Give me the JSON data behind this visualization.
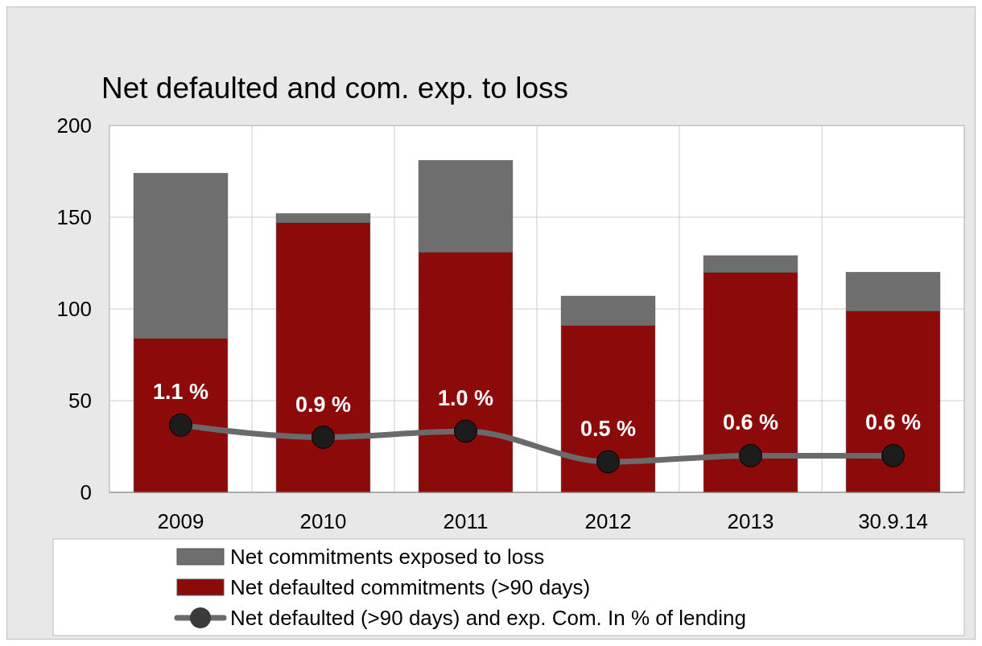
{
  "chart_data": {
    "type": "bar",
    "title": "Net defaulted and com. exp. to loss",
    "categories": [
      "2009",
      "2010",
      "2011",
      "2012",
      "2013",
      "30.9.14"
    ],
    "stacked": true,
    "ylim": [
      0,
      200
    ],
    "yticks": [
      0,
      50,
      100,
      150,
      200
    ],
    "y2lim": [
      0,
      6
    ],
    "grid": true,
    "legend": "bottom",
    "series": [
      {
        "name": "Net defaulted commitments (>90 days)",
        "color": "#8c0a0a",
        "values": [
          84,
          147,
          131,
          91,
          120,
          99
        ]
      },
      {
        "name": "Net commitments exposed to loss",
        "color": "#6e6e6e",
        "values": [
          90,
          5,
          50,
          16,
          9,
          21
        ]
      },
      {
        "name": "Net defaulted (>90 days) and exp. Com. In % of lending",
        "type": "line",
        "axis": "y2",
        "color": "#6a6a6a",
        "marker": "circle",
        "values": [
          1.1,
          0.9,
          1.0,
          0.5,
          0.6,
          0.6
        ],
        "value_labels": [
          "1.1 %",
          "0.9 %",
          "1.0 %",
          "0.5 %",
          "0.6 %",
          "0.6 %"
        ]
      }
    ]
  }
}
